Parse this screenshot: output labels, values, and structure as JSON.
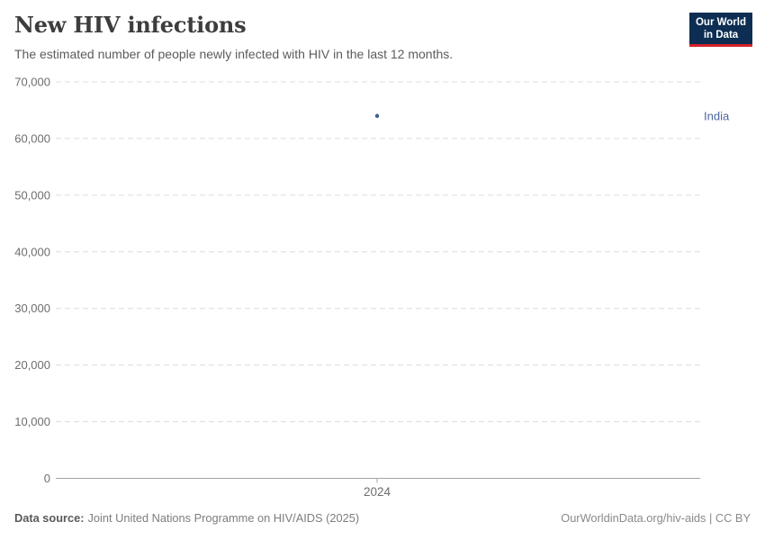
{
  "header": {
    "title": "New HIV infections",
    "subtitle": "The estimated number of people newly infected with HIV in the last 12 months.",
    "logo": {
      "line1": "Our World",
      "line2": "in Data"
    }
  },
  "chart_data": {
    "type": "scatter",
    "title": "New HIV infections",
    "x": [
      2024
    ],
    "series": [
      {
        "name": "India",
        "values": [
          64000
        ]
      }
    ],
    "xlabel": "",
    "ylabel": "",
    "ylim": [
      0,
      70000
    ],
    "ytick_step": 10000,
    "ytick_labels": [
      "0",
      "10,000",
      "20,000",
      "30,000",
      "40,000",
      "50,000",
      "60,000",
      "70,000"
    ],
    "xtick_labels": [
      "2024"
    ],
    "grid": "horizontal-dashed",
    "legend_position": "right-of-point"
  },
  "footer": {
    "source_label": "Data source:",
    "source_text": "Joint United Nations Programme on HIV/AIDS (2025)",
    "attribution": "OurWorldinData.org/hiv-aids | CC BY"
  },
  "colors": {
    "entity_label_blue": "#4a67a0",
    "point_blue": "#3f5c8e",
    "grid": "#dcdcdc",
    "axis": "#a5a5a5",
    "tick_text": "#6e6e6e",
    "logo_bg": "#0d2e52",
    "logo_red": "#d1232a"
  }
}
